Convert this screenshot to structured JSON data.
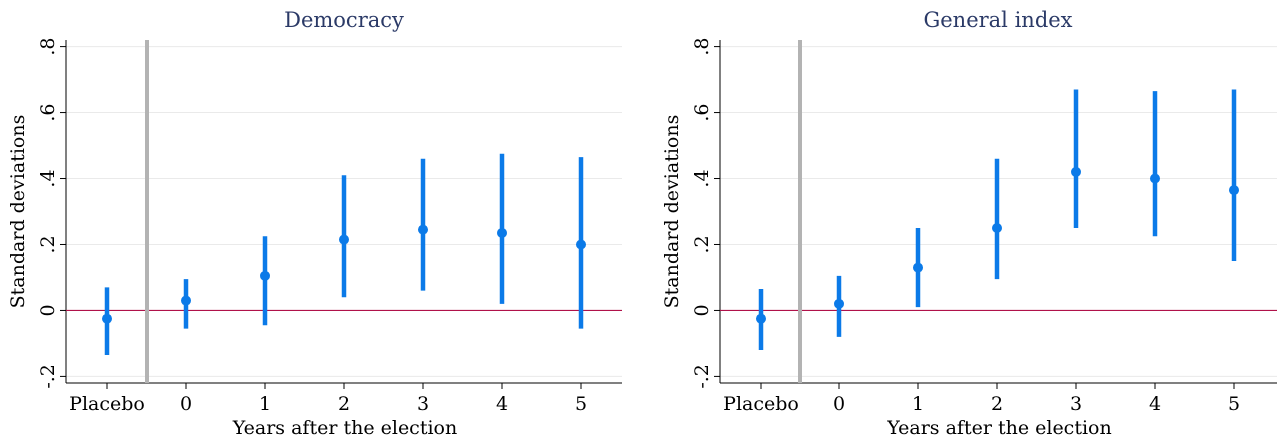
{
  "colors": {
    "series": "#0b7ae8",
    "zero_line": "#b0124a",
    "separator": "#b3b3b3",
    "title": "#2b3a67"
  },
  "chart_data": [
    {
      "type": "scatter",
      "title": "Democracy",
      "xlabel": "Years after the election",
      "ylabel": "Standard deviations",
      "categories": [
        "Placebo",
        "0",
        "1",
        "2",
        "3",
        "4",
        "5"
      ],
      "yticks": [
        "-.2",
        "0",
        ".2",
        ".4",
        ".6",
        ".8"
      ],
      "ylim": [
        -0.22,
        0.82
      ],
      "estimates": [
        -0.025,
        0.03,
        0.105,
        0.215,
        0.245,
        0.235,
        0.2
      ],
      "ci_low": [
        -0.135,
        -0.055,
        -0.045,
        0.04,
        0.06,
        0.02,
        -0.055
      ],
      "ci_high": [
        0.07,
        0.095,
        0.225,
        0.41,
        0.46,
        0.475,
        0.465
      ],
      "reference_line_y": 0,
      "grid": true
    },
    {
      "type": "scatter",
      "title": "General index",
      "xlabel": "Years after the election",
      "ylabel": "Standard deviations",
      "categories": [
        "Placebo",
        "0",
        "1",
        "2",
        "3",
        "4",
        "5"
      ],
      "yticks": [
        "-.2",
        "0",
        ".2",
        ".4",
        ".6",
        ".8"
      ],
      "ylim": [
        -0.22,
        0.82
      ],
      "estimates": [
        -0.025,
        0.02,
        0.13,
        0.25,
        0.42,
        0.4,
        0.365
      ],
      "ci_low": [
        -0.12,
        -0.08,
        0.01,
        0.095,
        0.25,
        0.225,
        0.15
      ],
      "ci_high": [
        0.065,
        0.105,
        0.25,
        0.46,
        0.67,
        0.665,
        0.67
      ],
      "reference_line_y": 0,
      "grid": true
    }
  ]
}
